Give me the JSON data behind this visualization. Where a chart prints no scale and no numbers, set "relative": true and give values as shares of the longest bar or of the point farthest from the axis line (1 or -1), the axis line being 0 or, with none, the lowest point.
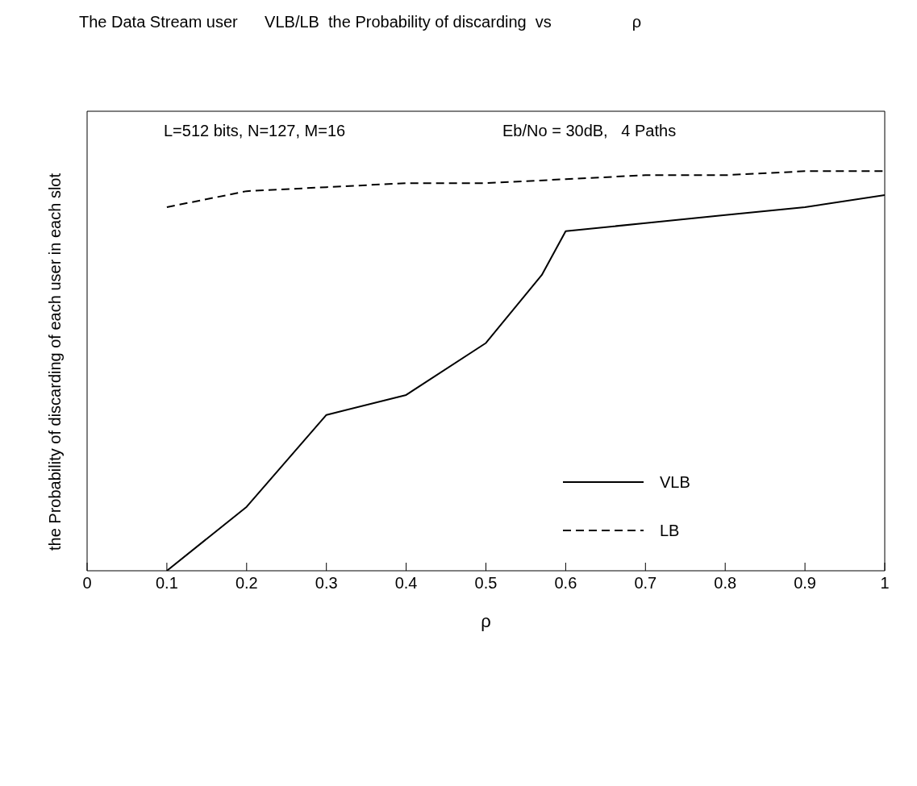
{
  "chart_data": {
    "type": "line",
    "title": "The Data Stream user      VLB/LB  the Probability of discarding  vs                  ρ",
    "xlabel": "ρ",
    "ylabel": "the Probability of discarding of each user in each slot",
    "relative": true,
    "xlim": [
      0,
      1
    ],
    "xticks": [
      0,
      0.1,
      0.2,
      0.3,
      0.4,
      0.5,
      0.6,
      0.7,
      0.8,
      0.9,
      1
    ],
    "legend": "bottom right",
    "marker": "none",
    "annotations": [
      "L=512 bits, N=127, M=16",
      "Eb/No = 30dB,   4 Paths"
    ],
    "series": [
      {
        "name": "VLB",
        "color": "#000000",
        "line_style": "solid",
        "x": [
          0.1,
          0.2,
          0.3,
          0.4,
          0.5,
          0.57,
          0.6,
          0.7,
          0.8,
          0.9,
          1.0
        ],
        "values": [
          0,
          0.16,
          0.39,
          0.44,
          0.57,
          0.74,
          0.85,
          0.87,
          0.89,
          0.91,
          0.94
        ]
      },
      {
        "name": "LB",
        "color": "#000000",
        "line_style": "dashed",
        "x": [
          0.1,
          0.2,
          0.3,
          0.4,
          0.5,
          0.6,
          0.7,
          0.8,
          0.9,
          1.0
        ],
        "values": [
          0.91,
          0.95,
          0.96,
          0.97,
          0.97,
          0.98,
          0.99,
          0.99,
          1,
          1
        ]
      }
    ]
  }
}
